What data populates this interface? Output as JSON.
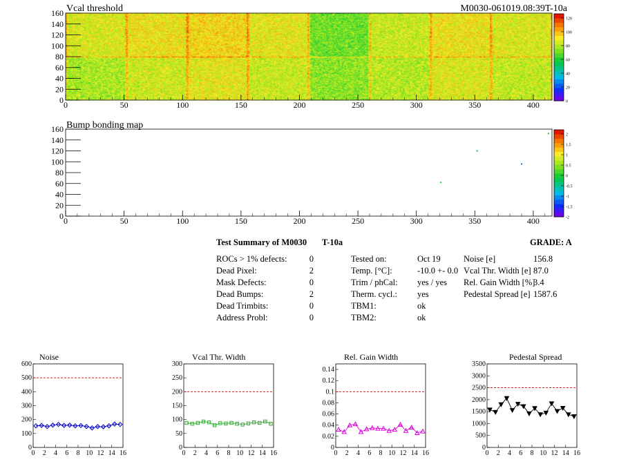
{
  "header": {
    "title": "Vcal threshold",
    "module_id": "M0030-061019.08:39T-10a"
  },
  "bump_map": {
    "title": "Bump bonding map",
    "hits": [
      {
        "x": 321,
        "y": 62,
        "color": "#22cc22"
      },
      {
        "x": 352,
        "y": 120,
        "color": "#00aaaa"
      },
      {
        "x": 390,
        "y": 96,
        "color": "#2266cc"
      },
      {
        "x": 413,
        "y": 152,
        "color": "#22cc22"
      }
    ]
  },
  "heatmap_axes": {
    "x_ticks": [
      0,
      50,
      100,
      150,
      200,
      250,
      300,
      350,
      400
    ],
    "y_ticks": [
      0,
      20,
      40,
      60,
      80,
      100,
      120,
      140,
      160
    ],
    "xlim": [
      0,
      416
    ],
    "ylim": [
      0,
      160
    ]
  },
  "palette_vcal": {
    "labels": [
      "0",
      "20",
      "40",
      "60",
      "80",
      "100",
      "120"
    ],
    "max": 128
  },
  "palette_bump": {
    "labels": [
      "-2",
      "-1.5",
      "-1",
      "-0.5",
      "0",
      "0.5",
      "1",
      "1.5",
      "2"
    ]
  },
  "summary": {
    "heading": "Test Summary of M0030",
    "temp_label": "T-10a",
    "grade": "GRADE:  A",
    "left_rows": [
      {
        "label": "ROCs > 1% defects:",
        "value": "0"
      },
      {
        "label": "Dead Pixel:",
        "value": "2"
      },
      {
        "label": "Mask Defects:",
        "value": "0"
      },
      {
        "label": "Dead Bumps:",
        "value": "2"
      },
      {
        "label": "Dead Trimbits:",
        "value": "0"
      },
      {
        "label": "Address Probl:",
        "value": "0"
      }
    ],
    "mid_rows": [
      {
        "label": "Tested on:",
        "value": "Oct 19"
      },
      {
        "label": "Temp. [°C]:",
        "value": "-10.0 +- 0.0"
      },
      {
        "label": "Trim / phCal:",
        "value": "yes / yes"
      },
      {
        "label": "Therm. cycl.:",
        "value": "yes"
      },
      {
        "label": "TBM1:",
        "value": "ok"
      },
      {
        "label": "TBM2:",
        "value": "ok"
      }
    ],
    "right_rows": [
      {
        "label": "Noise [e]",
        "value": "156.8"
      },
      {
        "label": "Vcal Thr. Width [e]",
        "value": "87.0"
      },
      {
        "label": "Rel. Gain Width [%]",
        "value": "3.4"
      },
      {
        "label": "Pedestal Spread [e]",
        "value": "1587.6"
      }
    ]
  },
  "vcal_levels": [
    [
      88,
      92,
      95,
      90,
      72,
      85,
      92,
      88,
      84,
      86,
      90,
      85,
      80,
      88,
      86,
      94
    ],
    [
      80,
      86,
      90,
      85,
      76,
      82,
      88,
      84,
      88,
      84,
      86,
      82,
      84,
      86,
      90,
      88
    ]
  ],
  "chart_data": [
    {
      "type": "line",
      "title": "Noise",
      "color": "#0000cc",
      "marker": "diamond",
      "x": [
        0,
        1,
        2,
        3,
        4,
        5,
        6,
        7,
        8,
        9,
        10,
        11,
        12,
        13,
        14,
        15
      ],
      "values": [
        155,
        158,
        150,
        160,
        165,
        158,
        160,
        155,
        157,
        150,
        140,
        150,
        148,
        155,
        168,
        165
      ],
      "xlim": [
        0,
        16
      ],
      "ylim": [
        0,
        600
      ],
      "yticks": [
        0,
        100,
        200,
        300,
        400,
        500,
        600
      ],
      "xticks": [
        0,
        2,
        4,
        6,
        8,
        10,
        12,
        14,
        16
      ],
      "threshold": 500
    },
    {
      "type": "line",
      "title": "Vcal Thr. Width",
      "color": "#33aa33",
      "marker": "square",
      "x": [
        0,
        1,
        2,
        3,
        4,
        5,
        6,
        7,
        8,
        9,
        10,
        11,
        12,
        13,
        14,
        15
      ],
      "values": [
        88,
        85,
        88,
        93,
        90,
        80,
        87,
        86,
        88,
        85,
        82,
        86,
        90,
        88,
        93,
        85
      ],
      "xlim": [
        0,
        16
      ],
      "ylim": [
        0,
        300
      ],
      "yticks": [
        0,
        50,
        100,
        150,
        200,
        250,
        300
      ],
      "xticks": [
        0,
        2,
        4,
        6,
        8,
        10,
        12,
        14,
        16
      ],
      "threshold": 200
    },
    {
      "type": "line",
      "title": "Rel. Gain Width",
      "color": "#dd00dd",
      "marker": "triangle",
      "x": [
        0,
        1,
        2,
        3,
        4,
        5,
        6,
        7,
        8,
        9,
        10,
        11,
        12,
        13,
        14,
        15
      ],
      "values": [
        0.032,
        0.028,
        0.04,
        0.042,
        0.028,
        0.033,
        0.035,
        0.034,
        0.034,
        0.03,
        0.032,
        0.041,
        0.03,
        0.036,
        0.026,
        0.029
      ],
      "xlim": [
        0,
        16
      ],
      "ylim": [
        0,
        0.15
      ],
      "yticks": [
        0,
        0.02,
        0.04,
        0.06,
        0.08,
        0.1,
        0.12,
        0.14
      ],
      "ytick_labels": [
        "0",
        "0.02",
        "0.04",
        "0.06",
        "0.08",
        "0.1",
        "0.12",
        "0.14"
      ],
      "xticks": [
        0,
        2,
        4,
        6,
        8,
        10,
        12,
        14,
        16
      ],
      "threshold": 0.1
    },
    {
      "type": "line",
      "title": "Pedestal Spread",
      "color": "#000000",
      "marker": "triangle-down",
      "x": [
        0,
        1,
        2,
        3,
        4,
        5,
        6,
        7,
        8,
        9,
        10,
        11,
        12,
        13,
        14,
        15
      ],
      "values": [
        1580,
        1480,
        1800,
        2060,
        1560,
        1820,
        1720,
        1420,
        1640,
        1380,
        1450,
        1840,
        1520,
        1650,
        1380,
        1300
      ],
      "xlim": [
        0,
        16
      ],
      "ylim": [
        0,
        3500
      ],
      "yticks": [
        0,
        500,
        1000,
        1500,
        2000,
        2500,
        3000,
        3500
      ],
      "xticks": [
        0,
        2,
        4,
        6,
        8,
        10,
        12,
        14,
        16
      ],
      "threshold": 2500
    }
  ]
}
